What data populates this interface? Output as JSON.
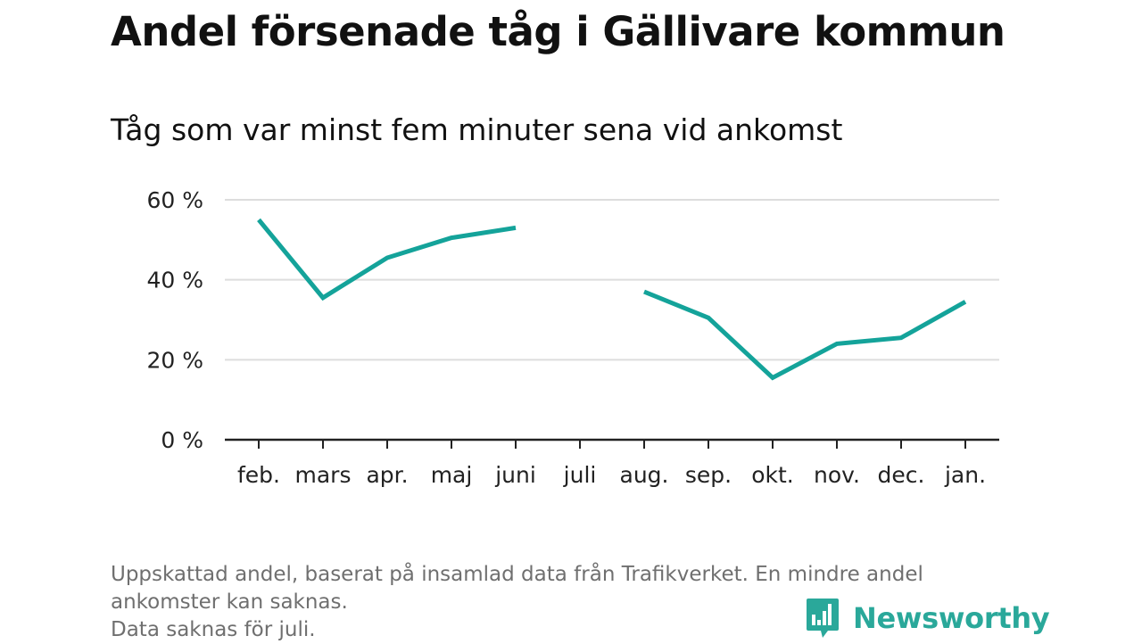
{
  "title": "Andel försenade tåg i Gällivare kommun",
  "subtitle": "Tåg som var minst fem minuter sena vid ankomst",
  "footnote": {
    "line1": "Uppskattad andel, baserat på insamlad data från Trafikverket. En mindre andel",
    "line2": "ankomster kan saknas.",
    "line3": "Data saknas för juli."
  },
  "brand": {
    "name": "Newsworthy",
    "icon": "newsworthy-logo-icon",
    "color": "#2aa89a"
  },
  "chart_data": {
    "type": "line",
    "categories": [
      "feb.",
      "mars",
      "apr.",
      "maj",
      "juni",
      "juli",
      "aug.",
      "sep.",
      "okt.",
      "nov.",
      "dec.",
      "jan."
    ],
    "series": [
      {
        "values": [
          55,
          35.5,
          45.5,
          50.5,
          53,
          null,
          37,
          30.5,
          15.5,
          24,
          25.5,
          34.5
        ],
        "color": "#14a39a"
      }
    ],
    "yticks": [
      0,
      20,
      40,
      60
    ],
    "ytick_labels": [
      "0 %",
      "20 %",
      "40 %",
      "60 %"
    ],
    "ylim": [
      0,
      60
    ],
    "grid": true,
    "xlabel": "",
    "ylabel": ""
  }
}
